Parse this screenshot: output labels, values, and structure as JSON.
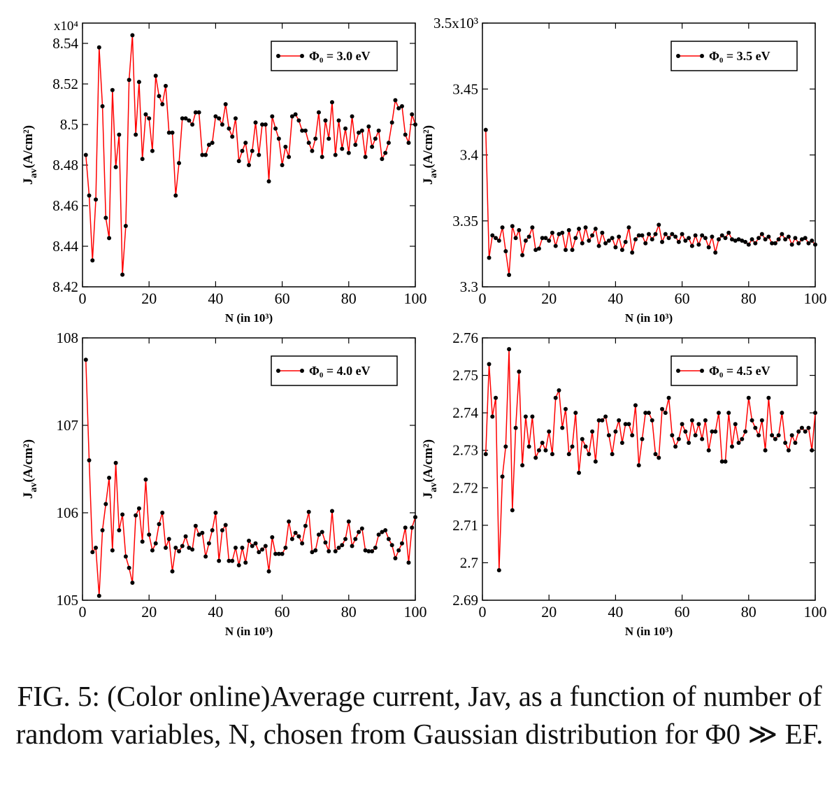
{
  "chart_data": [
    {
      "type": "line",
      "y_multiplier": "x10⁴",
      "xlabel": "N (in 10³)",
      "ylabel": {
        "main": "J",
        "sub": "av",
        "unit": "(A/cm²)"
      },
      "xlim": [
        0,
        100
      ],
      "xticks": [
        0,
        20,
        40,
        60,
        80,
        100
      ],
      "ylim": [
        8.42,
        8.55
      ],
      "yticks": [
        8.42,
        8.44,
        8.46,
        8.48,
        8.5,
        8.52,
        8.54
      ],
      "legend": "upper right",
      "x": [
        1,
        2,
        3,
        4,
        5,
        6,
        7,
        8,
        9,
        10,
        11,
        12,
        13,
        14,
        15,
        16,
        17,
        18,
        19,
        20,
        21,
        22,
        23,
        24,
        25,
        26,
        27,
        28,
        29,
        30,
        31,
        32,
        33,
        34,
        35,
        36,
        37,
        38,
        39,
        40,
        41,
        42,
        43,
        44,
        45,
        46,
        47,
        48,
        49,
        50,
        51,
        52,
        53,
        54,
        55,
        56,
        57,
        58,
        59,
        60,
        61,
        62,
        63,
        64,
        65,
        66,
        67,
        68,
        69,
        70,
        71,
        72,
        73,
        74,
        75,
        76,
        77,
        78,
        79,
        80,
        81,
        82,
        83,
        84,
        85,
        86,
        87,
        88,
        89,
        90,
        91,
        92,
        93,
        94,
        95,
        96,
        97,
        98,
        99,
        100
      ],
      "series": [
        {
          "name": "Φ₀ = 3.0 eV",
          "color": "#ff0000",
          "marker_color": "#000000",
          "values": [
            8.485,
            8.465,
            8.433,
            8.463,
            8.538,
            8.509,
            8.454,
            8.444,
            8.517,
            8.479,
            8.495,
            8.426,
            8.45,
            8.522,
            8.544,
            8.495,
            8.521,
            8.483,
            8.505,
            8.503,
            8.487,
            8.524,
            8.514,
            8.51,
            8.519,
            8.496,
            8.496,
            8.465,
            8.481,
            8.503,
            8.503,
            8.502,
            8.5,
            8.506,
            8.506,
            8.485,
            8.485,
            8.49,
            8.491,
            8.504,
            8.503,
            8.5,
            8.51,
            8.498,
            8.494,
            8.503,
            8.482,
            8.487,
            8.491,
            8.48,
            8.487,
            8.501,
            8.485,
            8.5,
            8.5,
            8.472,
            8.504,
            8.498,
            8.493,
            8.48,
            8.489,
            8.484,
            8.504,
            8.505,
            8.502,
            8.497,
            8.497,
            8.491,
            8.487,
            8.493,
            8.506,
            8.484,
            8.502,
            8.493,
            8.511,
            8.485,
            8.502,
            8.488,
            8.498,
            8.486,
            8.504,
            8.49,
            8.496,
            8.497,
            8.484,
            8.499,
            8.489,
            8.493,
            8.497,
            8.483,
            8.486,
            8.491,
            8.501,
            8.512,
            8.508,
            8.509,
            8.495,
            8.491,
            8.505,
            8.5
          ]
        }
      ]
    },
    {
      "type": "line",
      "xlabel": "N (in 10³)",
      "ylabel": {
        "main": "J",
        "sub": "av",
        "unit": "(A/cm²)"
      },
      "xlim": [
        0,
        100
      ],
      "xticks": [
        0,
        20,
        40,
        60,
        80,
        100
      ],
      "ylim": [
        3.3,
        3.5
      ],
      "yticks": [
        3.3,
        3.35,
        3.4,
        3.45,
        {
          "value": 3.5,
          "label": "3.5x10³"
        }
      ],
      "legend": "upper right",
      "x": [
        1,
        2,
        3,
        4,
        5,
        6,
        7,
        8,
        9,
        10,
        11,
        12,
        13,
        14,
        15,
        16,
        17,
        18,
        19,
        20,
        21,
        22,
        23,
        24,
        25,
        26,
        27,
        28,
        29,
        30,
        31,
        32,
        33,
        34,
        35,
        36,
        37,
        38,
        39,
        40,
        41,
        42,
        43,
        44,
        45,
        46,
        47,
        48,
        49,
        50,
        51,
        52,
        53,
        54,
        55,
        56,
        57,
        58,
        59,
        60,
        61,
        62,
        63,
        64,
        65,
        66,
        67,
        68,
        69,
        70,
        71,
        72,
        73,
        74,
        75,
        76,
        77,
        78,
        79,
        80,
        81,
        82,
        83,
        84,
        85,
        86,
        87,
        88,
        89,
        90,
        91,
        92,
        93,
        94,
        95,
        96,
        97,
        98,
        99,
        100
      ],
      "series": [
        {
          "name": "Φ₀ = 3.5 eV",
          "color": "#ff0000",
          "marker_color": "#000000",
          "values": [
            3.419,
            3.322,
            3.339,
            3.337,
            3.335,
            3.345,
            3.327,
            3.309,
            3.346,
            3.337,
            3.343,
            3.324,
            3.335,
            3.338,
            3.345,
            3.328,
            3.329,
            3.337,
            3.337,
            3.335,
            3.341,
            3.331,
            3.34,
            3.341,
            3.328,
            3.343,
            3.328,
            3.337,
            3.344,
            3.333,
            3.345,
            3.335,
            3.339,
            3.344,
            3.331,
            3.341,
            3.333,
            3.335,
            3.337,
            3.33,
            3.338,
            3.328,
            3.334,
            3.345,
            3.326,
            3.336,
            3.339,
            3.339,
            3.333,
            3.34,
            3.336,
            3.34,
            3.347,
            3.334,
            3.34,
            3.337,
            3.34,
            3.338,
            3.334,
            3.34,
            3.335,
            3.337,
            3.331,
            3.339,
            3.332,
            3.339,
            3.337,
            3.33,
            3.338,
            3.326,
            3.336,
            3.339,
            3.337,
            3.341,
            3.336,
            3.335,
            3.336,
            3.335,
            3.334,
            3.332,
            3.336,
            3.333,
            3.337,
            3.34,
            3.336,
            3.338,
            3.333,
            3.333,
            3.336,
            3.34,
            3.336,
            3.338,
            3.332,
            3.337,
            3.333,
            3.336,
            3.337,
            3.333,
            3.335,
            3.332
          ]
        }
      ]
    },
    {
      "type": "line",
      "xlabel": "N (in 10³)",
      "ylabel": {
        "main": "J",
        "sub": "av",
        "unit": "(A/cm²)"
      },
      "xlim": [
        0,
        100
      ],
      "xticks": [
        0,
        20,
        40,
        60,
        80,
        100
      ],
      "ylim": [
        105,
        108
      ],
      "yticks": [
        105,
        106,
        107,
        108
      ],
      "legend": "upper right",
      "x": [
        1,
        2,
        3,
        4,
        5,
        6,
        7,
        8,
        9,
        10,
        11,
        12,
        13,
        14,
        15,
        16,
        17,
        18,
        19,
        20,
        21,
        22,
        23,
        24,
        25,
        26,
        27,
        28,
        29,
        30,
        31,
        32,
        33,
        34,
        35,
        36,
        37,
        38,
        39,
        40,
        41,
        42,
        43,
        44,
        45,
        46,
        47,
        48,
        49,
        50,
        51,
        52,
        53,
        54,
        55,
        56,
        57,
        58,
        59,
        60,
        61,
        62,
        63,
        64,
        65,
        66,
        67,
        68,
        69,
        70,
        71,
        72,
        73,
        74,
        75,
        76,
        77,
        78,
        79,
        80,
        81,
        82,
        83,
        84,
        85,
        86,
        87,
        88,
        89,
        90,
        91,
        92,
        93,
        94,
        95,
        96,
        97,
        98,
        99,
        100
      ],
      "series": [
        {
          "name": "Φ₀ = 4.0 eV",
          "color": "#ff0000",
          "marker_color": "#000000",
          "values": [
            107.75,
            106.6,
            105.55,
            105.6,
            105.05,
            105.8,
            106.1,
            106.4,
            105.57,
            106.57,
            105.8,
            105.98,
            105.5,
            105.37,
            105.2,
            105.97,
            106.05,
            105.67,
            106.38,
            105.75,
            105.57,
            105.65,
            105.87,
            106.0,
            105.6,
            105.7,
            105.33,
            105.6,
            105.56,
            105.62,
            105.73,
            105.6,
            105.58,
            105.85,
            105.75,
            105.77,
            105.5,
            105.65,
            105.8,
            106.0,
            105.45,
            105.8,
            105.86,
            105.45,
            105.45,
            105.6,
            105.4,
            105.6,
            105.43,
            105.68,
            105.62,
            105.65,
            105.55,
            105.58,
            105.62,
            105.33,
            105.72,
            105.53,
            105.53,
            105.53,
            105.6,
            105.9,
            105.7,
            105.77,
            105.73,
            105.65,
            105.85,
            106.01,
            105.55,
            105.57,
            105.75,
            105.78,
            105.66,
            105.56,
            106.02,
            105.56,
            105.6,
            105.63,
            105.7,
            105.9,
            105.62,
            105.7,
            105.78,
            105.82,
            105.57,
            105.56,
            105.56,
            105.6,
            105.75,
            105.78,
            105.8,
            105.7,
            105.63,
            105.48,
            105.57,
            105.65,
            105.83,
            105.43,
            105.83,
            105.95
          ]
        }
      ]
    },
    {
      "type": "line",
      "xlabel": "N (in 10³)",
      "ylabel": {
        "main": "J",
        "sub": "av",
        "unit": "(A/cm²)"
      },
      "xlim": [
        0,
        100
      ],
      "xticks": [
        0,
        20,
        40,
        60,
        80,
        100
      ],
      "ylim": [
        2.69,
        2.76
      ],
      "yticks": [
        2.69,
        2.7,
        2.71,
        2.72,
        2.73,
        2.74,
        2.75,
        2.76
      ],
      "legend": "upper right",
      "x": [
        1,
        2,
        3,
        4,
        5,
        6,
        7,
        8,
        9,
        10,
        11,
        12,
        13,
        14,
        15,
        16,
        17,
        18,
        19,
        20,
        21,
        22,
        23,
        24,
        25,
        26,
        27,
        28,
        29,
        30,
        31,
        32,
        33,
        34,
        35,
        36,
        37,
        38,
        39,
        40,
        41,
        42,
        43,
        44,
        45,
        46,
        47,
        48,
        49,
        50,
        51,
        52,
        53,
        54,
        55,
        56,
        57,
        58,
        59,
        60,
        61,
        62,
        63,
        64,
        65,
        66,
        67,
        68,
        69,
        70,
        71,
        72,
        73,
        74,
        75,
        76,
        77,
        78,
        79,
        80,
        81,
        82,
        83,
        84,
        85,
        86,
        87,
        88,
        89,
        90,
        91,
        92,
        93,
        94,
        95,
        96,
        97,
        98,
        99,
        100
      ],
      "series": [
        {
          "name": "Φ₀ = 4.5 eV",
          "color": "#ff0000",
          "marker_color": "#000000",
          "values": [
            2.729,
            2.753,
            2.739,
            2.744,
            2.698,
            2.723,
            2.731,
            2.757,
            2.714,
            2.736,
            2.751,
            2.726,
            2.739,
            2.731,
            2.739,
            2.728,
            2.73,
            2.732,
            2.73,
            2.735,
            2.729,
            2.744,
            2.746,
            2.736,
            2.741,
            2.729,
            2.731,
            2.74,
            2.724,
            2.733,
            2.731,
            2.729,
            2.735,
            2.727,
            2.738,
            2.738,
            2.739,
            2.734,
            2.729,
            2.735,
            2.738,
            2.732,
            2.737,
            2.737,
            2.734,
            2.742,
            2.726,
            2.733,
            2.74,
            2.74,
            2.738,
            2.729,
            2.728,
            2.741,
            2.74,
            2.744,
            2.734,
            2.731,
            2.733,
            2.737,
            2.735,
            2.732,
            2.738,
            2.734,
            2.737,
            2.733,
            2.738,
            2.73,
            2.735,
            2.735,
            2.74,
            2.727,
            2.727,
            2.74,
            2.731,
            2.737,
            2.732,
            2.733,
            2.735,
            2.744,
            2.738,
            2.736,
            2.734,
            2.738,
            2.73,
            2.744,
            2.734,
            2.733,
            2.734,
            2.74,
            2.732,
            2.73,
            2.734,
            2.732,
            2.735,
            2.736,
            2.735,
            2.736,
            2.73,
            2.74
          ]
        }
      ]
    }
  ],
  "caption": "FIG. 5: (Color online)Average current, Jav, as a function of number of random variables, N, chosen from Gaussian distribution for Φ0 ≫ EF."
}
